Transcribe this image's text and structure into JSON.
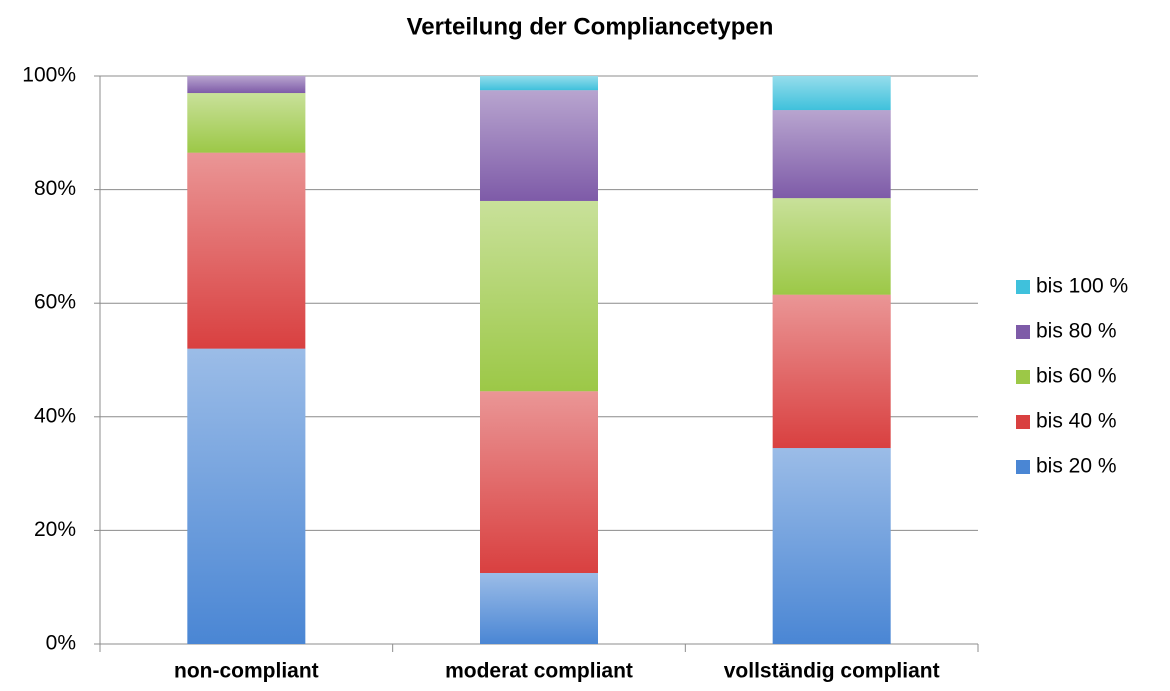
{
  "chart_data": {
    "type": "stacked_bar",
    "title": "Verteilung der Compliancetypen",
    "categories": [
      "non-compliant",
      "moderat compliant",
      "vollständig compliant"
    ],
    "series": [
      {
        "name": "bis 20 %",
        "color": "#4a86d4",
        "values": [
          52,
          12.5,
          34.5
        ]
      },
      {
        "name": "bis 40 %",
        "color": "#d94040",
        "values": [
          34.5,
          32,
          27
        ]
      },
      {
        "name": "bis 60 %",
        "color": "#9cc847",
        "values": [
          10.5,
          33.5,
          17
        ]
      },
      {
        "name": "bis 80 %",
        "color": "#7e5ba8",
        "values": [
          3,
          19.5,
          15.5
        ]
      },
      {
        "name": "bis 100 %",
        "color": "#3fc1dc",
        "values": [
          0,
          2.5,
          6
        ]
      }
    ],
    "ylim": [
      0,
      100
    ],
    "yticks": [
      {
        "value": 0,
        "label": "0%"
      },
      {
        "value": 20,
        "label": "20%"
      },
      {
        "value": 40,
        "label": "40%"
      },
      {
        "value": 60,
        "label": "60%"
      },
      {
        "value": 80,
        "label": "80%"
      },
      {
        "value": 100,
        "label": "100%"
      }
    ],
    "grid": true,
    "legend": "right"
  }
}
